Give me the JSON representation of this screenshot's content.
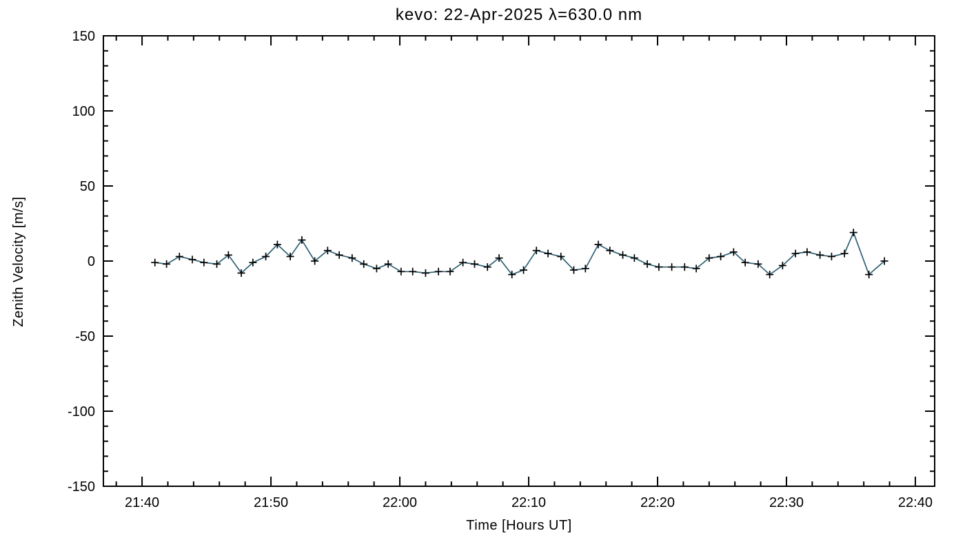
{
  "chart_data": {
    "type": "line",
    "title": "kevo: 22-Apr-2025 λ=630.0 nm",
    "xlabel": "Time [Hours UT]",
    "ylabel": "Zenith Velocity [m/s]",
    "x_unit": "minutes after 21:40 UT",
    "xlim": [
      -3,
      61.5
    ],
    "ylim": [
      -150,
      150
    ],
    "grid": false,
    "legend": "none",
    "line_color": "#2e6073",
    "marker": "plus",
    "marker_color": "#000000",
    "x_ticks": [
      {
        "pos": 0,
        "label": "21:40"
      },
      {
        "pos": 10,
        "label": "21:50"
      },
      {
        "pos": 20,
        "label": "22:00"
      },
      {
        "pos": 30,
        "label": "22:10"
      },
      {
        "pos": 40,
        "label": "22:20"
      },
      {
        "pos": 50,
        "label": "22:30"
      },
      {
        "pos": 60,
        "label": "22:40"
      }
    ],
    "y_ticks": [
      {
        "pos": -150,
        "label": "-150"
      },
      {
        "pos": -100,
        "label": "-100"
      },
      {
        "pos": -50,
        "label": "-50"
      },
      {
        "pos": 0,
        "label": "0"
      },
      {
        "pos": 50,
        "label": "50"
      },
      {
        "pos": 100,
        "label": "100"
      },
      {
        "pos": 150,
        "label": "150"
      }
    ],
    "x_minor_step": 2,
    "y_minor_step": 10,
    "points": [
      [
        1.0,
        -1
      ],
      [
        1.9,
        -2
      ],
      [
        2.9,
        3
      ],
      [
        3.9,
        1
      ],
      [
        4.8,
        -1
      ],
      [
        5.8,
        -2
      ],
      [
        6.7,
        4
      ],
      [
        7.7,
        -8
      ],
      [
        8.6,
        -1
      ],
      [
        9.6,
        3
      ],
      [
        10.5,
        11
      ],
      [
        11.5,
        3
      ],
      [
        12.4,
        14
      ],
      [
        13.4,
        0
      ],
      [
        14.4,
        7
      ],
      [
        15.3,
        4
      ],
      [
        16.3,
        2
      ],
      [
        17.2,
        -2
      ],
      [
        18.2,
        -5
      ],
      [
        19.1,
        -2
      ],
      [
        20.1,
        -7
      ],
      [
        21.0,
        -7
      ],
      [
        22.0,
        -8
      ],
      [
        23.0,
        -7
      ],
      [
        23.9,
        -7
      ],
      [
        24.9,
        -1
      ],
      [
        25.8,
        -2
      ],
      [
        26.8,
        -4
      ],
      [
        27.7,
        2
      ],
      [
        28.7,
        -9
      ],
      [
        29.6,
        -6
      ],
      [
        30.6,
        7
      ],
      [
        31.5,
        5
      ],
      [
        32.5,
        3
      ],
      [
        33.5,
        -6
      ],
      [
        34.4,
        -5
      ],
      [
        35.4,
        11
      ],
      [
        36.3,
        7
      ],
      [
        37.3,
        4
      ],
      [
        38.2,
        2
      ],
      [
        39.2,
        -2
      ],
      [
        40.1,
        -4
      ],
      [
        41.1,
        -4
      ],
      [
        42.1,
        -4
      ],
      [
        43.0,
        -5
      ],
      [
        44.0,
        2
      ],
      [
        44.9,
        3
      ],
      [
        45.9,
        6
      ],
      [
        46.8,
        -1
      ],
      [
        47.8,
        -2
      ],
      [
        48.7,
        -9
      ],
      [
        49.7,
        -3
      ],
      [
        50.7,
        5
      ],
      [
        51.6,
        6
      ],
      [
        52.6,
        4
      ],
      [
        53.5,
        3
      ],
      [
        54.5,
        5
      ],
      [
        55.2,
        19
      ],
      [
        56.4,
        -9
      ],
      [
        57.6,
        0
      ]
    ]
  }
}
